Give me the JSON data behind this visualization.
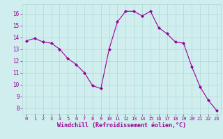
{
  "x": [
    0,
    1,
    2,
    3,
    4,
    5,
    6,
    7,
    8,
    9,
    10,
    11,
    12,
    13,
    14,
    15,
    16,
    17,
    18,
    19,
    20,
    21,
    22,
    23
  ],
  "y": [
    13.7,
    13.9,
    13.6,
    13.5,
    13.0,
    12.2,
    11.7,
    11.0,
    9.9,
    9.65,
    13.0,
    15.3,
    16.2,
    16.2,
    15.8,
    16.2,
    14.8,
    14.3,
    13.6,
    13.5,
    11.5,
    9.8,
    8.65,
    7.8
  ],
  "line_color": "#990099",
  "marker_color": "#990099",
  "bg_color": "#d0eeee",
  "grid_color": "#b0d8d8",
  "xlabel": "Windchill (Refroidissement éolien,°C)",
  "xlabel_color": "#990099",
  "tick_color": "#990099",
  "ylim": [
    7.5,
    16.8
  ],
  "xlim": [
    -0.5,
    23.5
  ],
  "yticks": [
    8,
    9,
    10,
    11,
    12,
    13,
    14,
    15,
    16
  ],
  "xticks": [
    0,
    1,
    2,
    3,
    4,
    5,
    6,
    7,
    8,
    9,
    10,
    11,
    12,
    13,
    14,
    15,
    16,
    17,
    18,
    19,
    20,
    21,
    22,
    23
  ],
  "figsize": [
    3.2,
    2.0
  ],
  "dpi": 100
}
